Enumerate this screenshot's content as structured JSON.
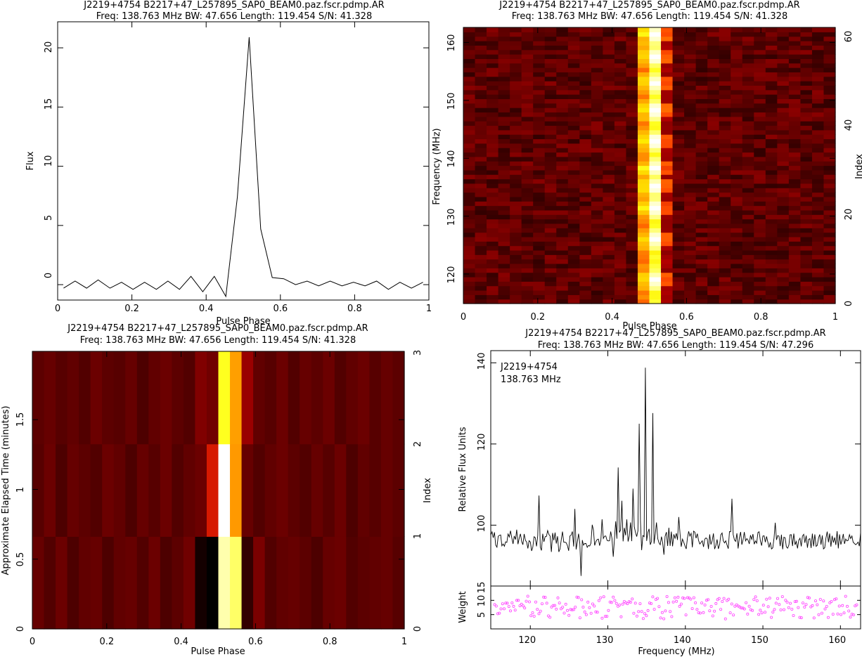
{
  "figure": {
    "title_line": "J2219+4754  B2217+47_L257895_SAP0_BEAM0.paz.fscr.pdmp.AR",
    "subtitle_line": "Freq: 138.763 MHz BW: 47.656 Length: 119.454 S/N: 41.328",
    "subtitle_line_bandpass": "Freq: 138.763 MHz BW: 47.656 Length: 119.454 S/N: 47.296"
  },
  "chart_data": [
    {
      "id": "profile",
      "type": "line",
      "title": "J2219+4754  B2217+47_L257895_SAP0_BEAM0.paz.fscr.pdmp.AR",
      "subtitle": "Freq: 138.763 MHz BW: 47.656 Length: 119.454 S/N: 41.328",
      "xlabel": "Pulse Phase",
      "ylabel": "Flux",
      "xlim": [
        0,
        1
      ],
      "ylim": [
        -1.3,
        22.2
      ],
      "xticks": [
        "0",
        "0.2",
        "0.4",
        "0.6",
        "0.8",
        "1"
      ],
      "yticks": [
        "0",
        "5",
        "10",
        "15",
        "20"
      ],
      "x": [
        0.016,
        0.047,
        0.078,
        0.109,
        0.141,
        0.172,
        0.203,
        0.234,
        0.266,
        0.297,
        0.328,
        0.359,
        0.391,
        0.422,
        0.453,
        0.484,
        0.516,
        0.547,
        0.578,
        0.609,
        0.641,
        0.672,
        0.703,
        0.734,
        0.766,
        0.797,
        0.828,
        0.859,
        0.891,
        0.922,
        0.953,
        0.984
      ],
      "values": [
        -0.3,
        0.3,
        -0.3,
        0.4,
        -0.3,
        0.2,
        -0.4,
        0.2,
        -0.4,
        0.3,
        -0.4,
        0.7,
        -0.6,
        0.7,
        -1.0,
        7.4,
        20.9,
        4.7,
        0.6,
        0.5,
        0.0,
        0.3,
        -0.1,
        0.3,
        -0.1,
        0.2,
        -0.1,
        0.3,
        -0.4,
        0.2,
        -0.3,
        0.2
      ],
      "line_color": "#000000"
    },
    {
      "id": "phase_frequency",
      "type": "heatmap",
      "title": "J2219+4754  B2217+47_L257895_SAP0_BEAM0.paz.fscr.pdmp.AR",
      "subtitle": "Freq: 138.763 MHz BW: 47.656 Length: 119.454 S/N: 41.328",
      "xlabel": "Pulse Phase",
      "ylabel": "Frequency (MHz)",
      "right_label": "Index",
      "xlim": [
        0,
        1
      ],
      "ylim": [
        114.9,
        162.6
      ],
      "right_lim": [
        0,
        62
      ],
      "xticks": [
        "0",
        "0.2",
        "0.4",
        "0.6",
        "0.8",
        "1"
      ],
      "yticks": [
        "120",
        "130",
        "140",
        "150",
        "160"
      ],
      "right_ticks": [
        "0",
        "20",
        "40",
        "60"
      ],
      "n_phase_bins": 32,
      "n_channels": 62,
      "colormap": "heat",
      "pulse_columns": [
        15,
        16,
        17
      ],
      "pulse_peak_channels": [
        5,
        14,
        21,
        26,
        30,
        36,
        43,
        49,
        55,
        60
      ]
    },
    {
      "id": "phase_time",
      "type": "heatmap",
      "title": "J2219+4754  B2217+47_L257895_SAP0_BEAM0.paz.fscr.pdmp.AR",
      "subtitle": "Freq: 138.763 MHz BW: 47.656 Length: 119.454 S/N: 41.328",
      "xlabel": "Pulse Phase",
      "ylabel": "Approximate Elapsed Time (minutes)",
      "right_label": "Index",
      "xlim": [
        0,
        1
      ],
      "ylim": [
        0,
        1.99
      ],
      "right_lim": [
        0,
        3
      ],
      "xticks": [
        "0",
        "0.2",
        "0.4",
        "0.6",
        "0.8",
        "1"
      ],
      "yticks": [
        "0",
        "0.5",
        "1",
        "1.5"
      ],
      "right_ticks": [
        "0",
        "1",
        "2",
        "3"
      ],
      "rows": [
        [
          0.2,
          0.16,
          0.21,
          0.15,
          0.19,
          0.2,
          0.15,
          0.19,
          0.2,
          0.16,
          0.21,
          0.15,
          0.18,
          0.22,
          0.04,
          0.0,
          0.92,
          0.85,
          0.1,
          0.24,
          0.16,
          0.19,
          0.2,
          0.18,
          0.15,
          0.2,
          0.21,
          0.16,
          0.18,
          0.19,
          0.2,
          0.17
        ],
        [
          0.17,
          0.21,
          0.15,
          0.2,
          0.18,
          0.16,
          0.21,
          0.19,
          0.15,
          0.2,
          0.17,
          0.21,
          0.16,
          0.19,
          0.21,
          0.42,
          1.0,
          0.62,
          0.2,
          0.16,
          0.19,
          0.21,
          0.18,
          0.16,
          0.2,
          0.17,
          0.21,
          0.15,
          0.19,
          0.17,
          0.2,
          0.18
        ],
        [
          0.18,
          0.2,
          0.17,
          0.19,
          0.16,
          0.21,
          0.18,
          0.17,
          0.2,
          0.15,
          0.19,
          0.21,
          0.18,
          0.16,
          0.25,
          0.22,
          0.78,
          0.63,
          0.3,
          0.19,
          0.17,
          0.21,
          0.16,
          0.2,
          0.18,
          0.21,
          0.16,
          0.19,
          0.21,
          0.17,
          0.2,
          0.18
        ]
      ],
      "colormap": "heat"
    },
    {
      "id": "bandpass",
      "type": "line",
      "title": "J2219+4754  B2217+47_L257895_SAP0_BEAM0.paz.fscr.pdmp.AR",
      "subtitle": "Freq: 138.763 MHz BW: 47.656 Length: 119.454 S/N: 47.296",
      "annotation_1": "J2219+4754",
      "annotation_2": "138.763 MHz",
      "xlabel": "Frequency (MHz)",
      "ylabel": "Relative Flux Units",
      "weight_label": "Weight",
      "xlim": [
        114.9,
        162.6
      ],
      "ylim": [
        85,
        143
      ],
      "weight_ylim": [
        0,
        15
      ],
      "xticks": [
        "120",
        "130",
        "140",
        "150",
        "160"
      ],
      "yticks": [
        "100",
        "120",
        "140"
      ],
      "weight_yticks": [
        "5",
        "10",
        "15"
      ],
      "peaks": [
        {
          "x": 121.1,
          "y": 107.3
        },
        {
          "x": 125.8,
          "y": 104.0
        },
        {
          "x": 126.6,
          "y": 87.5
        },
        {
          "x": 131.4,
          "y": 114.2
        },
        {
          "x": 131.8,
          "y": 106.0
        },
        {
          "x": 133.2,
          "y": 109.0
        },
        {
          "x": 134.0,
          "y": 125.0
        },
        {
          "x": 134.9,
          "y": 138.8
        },
        {
          "x": 135.8,
          "y": 127.6
        },
        {
          "x": 139.2,
          "y": 102.0
        },
        {
          "x": 146.0,
          "y": 106.5
        },
        {
          "x": 151.6,
          "y": 100.6
        }
      ],
      "baseline": 96.3,
      "line_color": "#000000",
      "weight_color": "#ff44ff"
    }
  ]
}
